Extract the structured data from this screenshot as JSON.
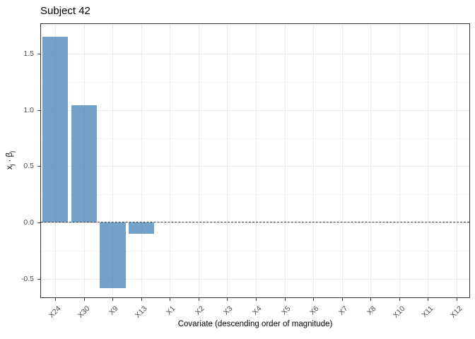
{
  "title": "Subject 42",
  "axes": {
    "x_title": "Covariate (descending order of magnitude)",
    "y_title_parts": [
      {
        "t": "x",
        "sub": false
      },
      {
        "t": "j",
        "sub": true
      },
      {
        "t": " · ",
        "sub": false
      },
      {
        "t": "β",
        "sub": false
      },
      {
        "t": "j",
        "sub": true
      }
    ]
  },
  "colors": {
    "bar_fill": "rgba(70,130,180,0.75)",
    "panel_border": "#333333",
    "grid_major": "#ececec",
    "grid_minor": "#f4f4f4",
    "axis_text": "#4d4d4d",
    "zero_line": "#404040"
  },
  "chart_data": {
    "type": "bar",
    "title": "Subject 42",
    "xlabel": "Covariate (descending order of magnitude)",
    "ylabel": "x_j · β_j",
    "categories": [
      "X24",
      "X30",
      "X9",
      "X13",
      "X1",
      "X2",
      "X3",
      "X4",
      "X5",
      "X6",
      "X7",
      "X8",
      "X10",
      "X11",
      "X12"
    ],
    "values": [
      1.65,
      1.04,
      -0.58,
      -0.1,
      0,
      0,
      0,
      0,
      0,
      0,
      0,
      0,
      0,
      0,
      0
    ],
    "ylim": [
      -0.675,
      1.7625
    ],
    "yticks_major": [
      -0.5,
      0.0,
      0.5,
      1.0,
      1.5
    ],
    "ytick_labels": [
      "-0.5",
      "0.0",
      "0.5",
      "1.0",
      "1.5"
    ],
    "yticks_minor": [
      -0.25,
      0.25,
      0.75,
      1.25,
      1.75
    ],
    "grid": true,
    "zero_line_style": "dashed",
    "bar_width_fraction": 0.9,
    "legend_position": "none"
  }
}
